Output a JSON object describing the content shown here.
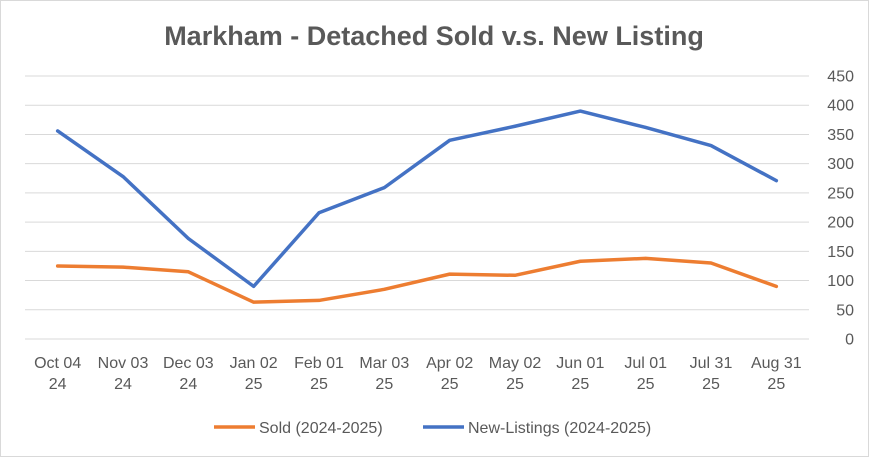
{
  "chart_data": {
    "type": "line",
    "title": "Markham - Detached Sold v.s. New Listing",
    "categories": [
      [
        "Oct 04",
        "24"
      ],
      [
        "Nov 03",
        "24"
      ],
      [
        "Dec 03",
        "24"
      ],
      [
        "Jan 02",
        "25"
      ],
      [
        "Feb 01",
        "25"
      ],
      [
        "Mar 03",
        "25"
      ],
      [
        "Apr 02",
        "25"
      ],
      [
        "May 02",
        "25"
      ],
      [
        "Jun 01",
        "25"
      ],
      [
        "Jul 01",
        "25"
      ],
      [
        "Jul 31",
        "25"
      ],
      [
        "Aug 31",
        "25"
      ]
    ],
    "y_ticks": [
      "0",
      "50",
      "100",
      "150",
      "200",
      "250",
      "300",
      "350",
      "400",
      "450"
    ],
    "ylim": [
      0,
      450
    ],
    "yaxis_position": "right",
    "grid": true,
    "legend_position": "bottom",
    "series": [
      {
        "name": "Sold (2024-2025)",
        "color": "#ed7d31",
        "values": [
          125,
          123,
          115,
          63,
          66,
          85,
          111,
          109,
          133,
          138,
          130,
          90
        ]
      },
      {
        "name": "New-Listings (2024-2025)",
        "color": "#4472c4",
        "values": [
          356,
          278,
          172,
          90,
          216,
          259,
          340,
          364,
          390,
          362,
          331,
          271
        ]
      }
    ]
  }
}
